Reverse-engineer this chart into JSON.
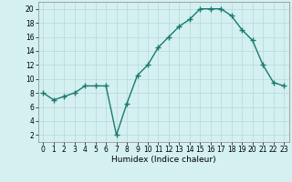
{
  "x": [
    0,
    1,
    2,
    3,
    4,
    5,
    6,
    7,
    8,
    9,
    10,
    11,
    12,
    13,
    14,
    15,
    16,
    17,
    18,
    19,
    20,
    21,
    22,
    23
  ],
  "y": [
    8,
    7,
    7.5,
    8,
    9,
    9,
    9,
    2,
    6.5,
    10.5,
    12,
    14.5,
    16,
    17.5,
    18.5,
    20,
    20,
    20,
    19,
    17,
    15.5,
    12,
    9.5,
    9
  ],
  "line_color": "#1a7a6e",
  "marker": "+",
  "marker_size": 4,
  "marker_lw": 1.0,
  "bg_color": "#d4f0f0",
  "grid_color": "#b8d8d8",
  "xlabel": "Humidex (Indice chaleur)",
  "xlim": [
    -0.5,
    23.5
  ],
  "ylim": [
    1,
    21
  ],
  "yticks": [
    2,
    4,
    6,
    8,
    10,
    12,
    14,
    16,
    18,
    20
  ],
  "xticks": [
    0,
    1,
    2,
    3,
    4,
    5,
    6,
    7,
    8,
    9,
    10,
    11,
    12,
    13,
    14,
    15,
    16,
    17,
    18,
    19,
    20,
    21,
    22,
    23
  ],
  "xlabel_fontsize": 6.5,
  "tick_fontsize": 5.5,
  "linewidth": 1.0
}
